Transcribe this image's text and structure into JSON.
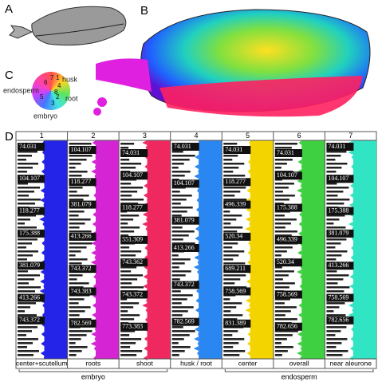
{
  "panels": {
    "A": "A",
    "B": "B",
    "C": "C",
    "D": "D"
  },
  "wheel": {
    "labels": [
      "husk",
      "root",
      "embryo",
      "endosperm"
    ],
    "numbers": [
      "7",
      "1",
      "6",
      "4",
      "8",
      "2",
      "5",
      "3"
    ]
  },
  "table": {
    "columns": [
      {
        "header": "1",
        "label": "center+scutellum",
        "peaks": [
          "74.031",
          "104.107",
          "118.277",
          "175.388",
          "381.079",
          "413.266",
          "743.372"
        ]
      },
      {
        "header": "2",
        "label": "roots",
        "peaks": [
          "104.107",
          "118.277",
          "381.079",
          "413.266",
          "743.372",
          "743.383",
          "782.569"
        ]
      },
      {
        "header": "3",
        "label": "shoot",
        "peaks": [
          "74.031",
          "104.107",
          "118.277",
          "551.309",
          "743.362",
          "743.372",
          "773.383"
        ]
      },
      {
        "header": "4",
        "label": "husk / root",
        "peaks": [
          "74.031",
          "104.107",
          "381.079",
          "413.266",
          "743.372",
          "782.569"
        ]
      },
      {
        "header": "5",
        "label": "center",
        "peaks": [
          "74.031",
          "118.277",
          "496.339",
          "520.34",
          "689.211",
          "758.569",
          "831.389"
        ]
      },
      {
        "header": "6",
        "label": "overall",
        "peaks": [
          "74.031",
          "104.107",
          "175.388",
          "496.339",
          "520.34",
          "758.569",
          "782.656"
        ]
      },
      {
        "header": "7",
        "label": "near aleurone",
        "peaks": [
          "74.031",
          "104.107",
          "175.388",
          "381.079",
          "413.266",
          "758.569",
          "782.656"
        ]
      }
    ],
    "groups": [
      {
        "label": "embryo"
      },
      {
        "label": "endosperm"
      }
    ]
  }
}
